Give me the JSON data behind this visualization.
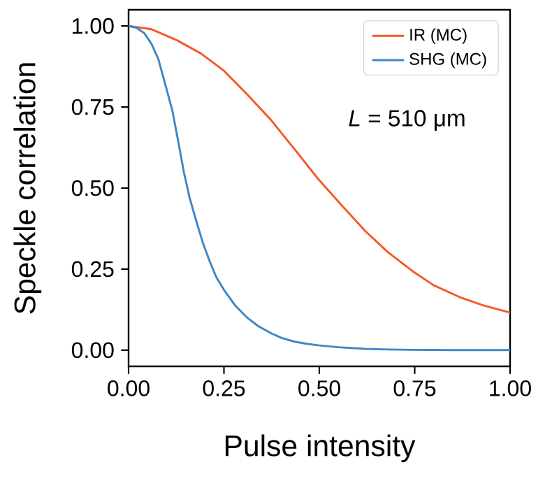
{
  "chart_data": {
    "type": "line",
    "xlabel": "Pulse intensity",
    "ylabel": "Speckle correlation",
    "annotations": [
      "*L* = 510 μm"
    ],
    "xlim": [
      0,
      1
    ],
    "ylim": [
      -0.05,
      1.05
    ],
    "xticks": [
      {
        "value": 0,
        "label": "0.00"
      },
      {
        "value": 0.25,
        "label": "0.25"
      },
      {
        "value": 0.5,
        "label": "0.50"
      },
      {
        "value": 0.75,
        "label": "0.75"
      },
      {
        "value": 1,
        "label": "1.00"
      }
    ],
    "yticks": [
      {
        "value": 0,
        "label": "0.00"
      },
      {
        "value": 0.25,
        "label": "0.25"
      },
      {
        "value": 0.5,
        "label": "0.50"
      },
      {
        "value": 0.75,
        "label": "0.75"
      },
      {
        "value": 1,
        "label": "1.00"
      }
    ],
    "grid": false,
    "legend": "top right",
    "marker": "none",
    "line_style": "solid",
    "series": [
      {
        "name": "IR (MC)",
        "color": "#f7582a",
        "x": [
          0,
          0.06,
          0.127,
          0.19,
          0.25,
          0.31,
          0.374,
          0.435,
          0.497,
          0.56,
          0.62,
          0.68,
          0.744,
          0.8,
          0.867,
          0.93,
          1
        ],
        "values": [
          1,
          0.99,
          0.956,
          0.915,
          0.862,
          0.79,
          0.709,
          0.62,
          0.528,
          0.445,
          0.368,
          0.302,
          0.244,
          0.2,
          0.164,
          0.138,
          0.116
        ]
      },
      {
        "name": "SHG (MC)",
        "color": "#3d87c6",
        "x": [
          0,
          0.02,
          0.041,
          0.06,
          0.078,
          0.095,
          0.115,
          0.13,
          0.145,
          0.16,
          0.176,
          0.195,
          0.213,
          0.23,
          0.25,
          0.28,
          0.312,
          0.34,
          0.374,
          0.4,
          0.435,
          0.47,
          0.497,
          0.55,
          0.62,
          0.68,
          0.744,
          0.85,
          1
        ],
        "values": [
          1,
          0.995,
          0.978,
          0.945,
          0.898,
          0.825,
          0.738,
          0.645,
          0.549,
          0.47,
          0.404,
          0.33,
          0.273,
          0.225,
          0.186,
          0.137,
          0.099,
          0.074,
          0.052,
          0.038,
          0.026,
          0.019,
          0.015,
          0.009,
          0.004,
          0.002,
          0.001,
          0,
          0
        ]
      }
    ]
  }
}
